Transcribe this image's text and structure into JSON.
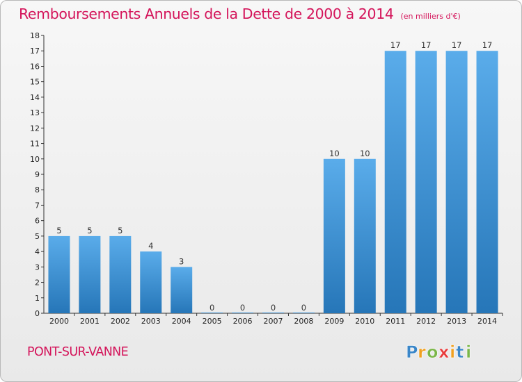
{
  "title": "Remboursements Annuels de la Dette de 2000 à 2014",
  "unit_note": "(en milliers d'€)",
  "commune": "PONT-SUR-VANNE",
  "logo_text": "Proxiti",
  "colors": {
    "title": "#d4145a",
    "bar_light": "#5aacea",
    "bar_dark": "#2676b8"
  },
  "chart_data": {
    "type": "bar",
    "title": "Remboursements Annuels de la Dette de 2000 à 2014",
    "xlabel": "",
    "ylabel": "",
    "categories": [
      "2000",
      "2001",
      "2002",
      "2003",
      "2004",
      "2005",
      "2006",
      "2007",
      "2008",
      "2009",
      "2010",
      "2011",
      "2012",
      "2013",
      "2014"
    ],
    "values": [
      5,
      5,
      5,
      4,
      3,
      0,
      0,
      0,
      0,
      10,
      10,
      17,
      17,
      17,
      17
    ],
    "ylim": [
      0,
      18
    ],
    "yticks": [
      0,
      1,
      2,
      3,
      4,
      5,
      6,
      7,
      8,
      9,
      10,
      11,
      12,
      13,
      14,
      15,
      16,
      17,
      18
    ],
    "grid": false,
    "legend": "none",
    "data_labels": true
  }
}
